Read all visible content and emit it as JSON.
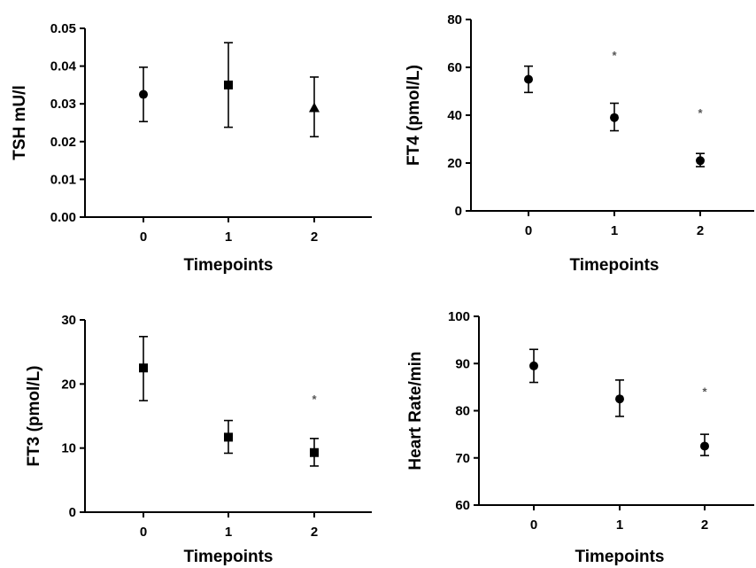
{
  "chart_data": [
    {
      "type": "scatter",
      "xlabel": "Timepoints",
      "ylabel": "TSH mU/l",
      "categories": [
        "0",
        "1",
        "2"
      ],
      "yticks": [
        "0.00",
        "0.01",
        "0.02",
        "0.03",
        "0.04",
        "0.05"
      ],
      "ylim": [
        0,
        0.05
      ],
      "marker": [
        "circle",
        "square",
        "triangle"
      ],
      "values": [
        0.0325,
        0.035,
        0.029
      ],
      "err_low": [
        0.0253,
        0.0238,
        0.0213
      ],
      "err_high": [
        0.0397,
        0.0462,
        0.0371
      ],
      "annotations": [
        "",
        "",
        ""
      ],
      "grid": false
    },
    {
      "type": "scatter",
      "xlabel": "Timepoints",
      "ylabel": "FT4 (pmol/L)",
      "categories": [
        "0",
        "1",
        "2"
      ],
      "yticks": [
        "0",
        "20",
        "40",
        "60",
        "80"
      ],
      "ylim": [
        0,
        80
      ],
      "marker": [
        "circle",
        "circle",
        "circle"
      ],
      "values": [
        55,
        39,
        21
      ],
      "err_low": [
        49.5,
        33.5,
        18.5
      ],
      "err_high": [
        60.5,
        45,
        24
      ],
      "annotations": [
        "",
        "*",
        "*"
      ],
      "annotation_y": [
        null,
        65.5,
        41.5
      ],
      "grid": false
    },
    {
      "type": "scatter",
      "xlabel": "Timepoints",
      "ylabel": "FT3 (pmol/L)",
      "categories": [
        "0",
        "1",
        "2"
      ],
      "yticks": [
        "0",
        "10",
        "20",
        "30"
      ],
      "ylim": [
        0,
        30
      ],
      "marker": [
        "square",
        "square",
        "square"
      ],
      "values": [
        22.5,
        11.7,
        9.3
      ],
      "err_low": [
        17.4,
        9.2,
        7.2
      ],
      "err_high": [
        27.4,
        14.3,
        11.5
      ],
      "annotations": [
        "",
        "",
        "*"
      ],
      "annotation_y": [
        null,
        null,
        17.8
      ],
      "grid": false
    },
    {
      "type": "scatter",
      "xlabel": "Timepoints",
      "ylabel": "Heart Rate/min",
      "categories": [
        "0",
        "1",
        "2"
      ],
      "yticks": [
        "60",
        "70",
        "80",
        "90",
        "100"
      ],
      "ylim": [
        60,
        100
      ],
      "marker": [
        "circle",
        "circle",
        "circle"
      ],
      "values": [
        89.5,
        82.5,
        72.5
      ],
      "err_low": [
        86,
        78.8,
        70.5
      ],
      "err_high": [
        93,
        86.5,
        75
      ],
      "annotations": [
        "",
        "",
        "*"
      ],
      "annotation_y": [
        null,
        null,
        84.3
      ],
      "grid": false
    }
  ]
}
